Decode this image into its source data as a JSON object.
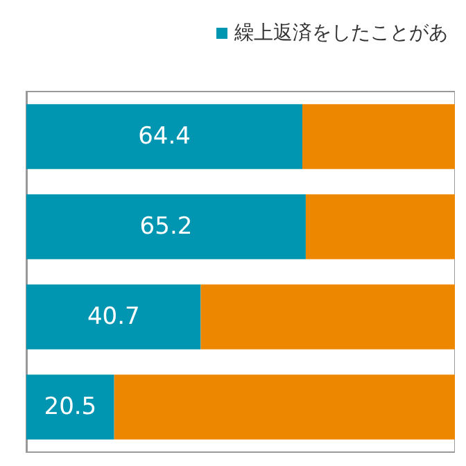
{
  "chart_data": {
    "type": "bar",
    "orientation": "horizontal",
    "stacked": true,
    "categories": [
      null,
      null,
      null,
      null
    ],
    "series": [
      {
        "name": "繰上返済をしたことがあ",
        "color": "#0095b0",
        "values": [
          64.4,
          65.2,
          40.7,
          20.5
        ],
        "value_labels": [
          "64.4",
          "65.2",
          "40.7",
          "20.5"
        ]
      },
      {
        "color": "#ee8700",
        "values": [
          35.6,
          34.8,
          59.3,
          79.5
        ]
      }
    ],
    "xlim": [
      0,
      100
    ],
    "legend": "top right"
  }
}
